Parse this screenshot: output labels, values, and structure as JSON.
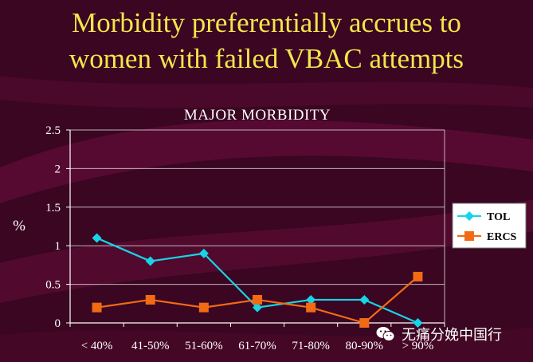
{
  "slide": {
    "title_line1": "Morbidity preferentially accrues to",
    "title_line2": "women with failed VBAC attempts",
    "watermark": "无痛分娩中国行"
  },
  "colors": {
    "background": "#3a0622",
    "title": "#f2e64a",
    "tol": "#17d4e6",
    "ercs": "#f26a14",
    "legend_bg": "#ffffff"
  },
  "chart_data": {
    "type": "line",
    "title": "MAJOR MORBIDITY",
    "ylabel": "%",
    "xlabel": "",
    "categories": [
      "< 40%",
      "41-50%",
      "51-60%",
      "61-70%",
      "71-80%",
      "80-90%",
      "> 90%"
    ],
    "ylim": [
      0,
      2.5
    ],
    "yticks": [
      "0",
      "0.5",
      "1",
      "1.5",
      "2",
      "2.5"
    ],
    "grid": true,
    "legend_position": "right",
    "series": [
      {
        "name": "TOL",
        "marker": "diamond",
        "values": [
          1.1,
          0.8,
          0.9,
          0.2,
          0.3,
          0.3,
          0.0
        ]
      },
      {
        "name": "ERCS",
        "marker": "square",
        "values": [
          0.2,
          0.3,
          0.2,
          0.3,
          0.2,
          0.0,
          0.6
        ]
      }
    ]
  }
}
